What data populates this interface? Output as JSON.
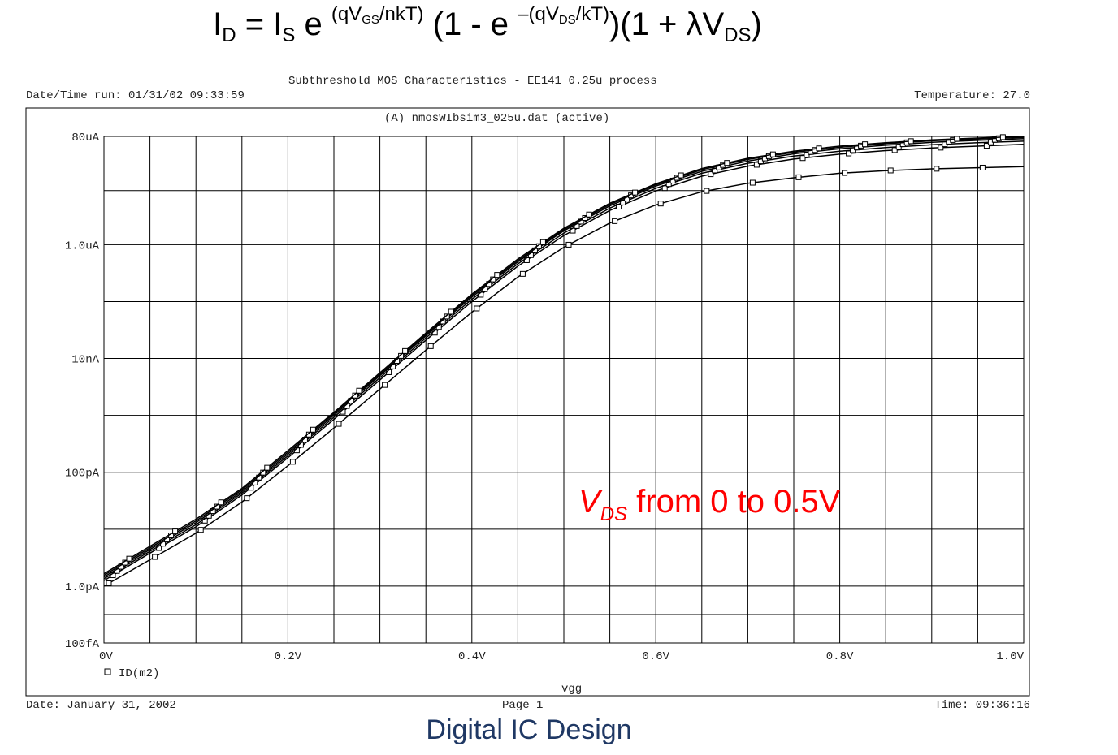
{
  "equation": {
    "lhs": "I",
    "lhs_sub": "D",
    "eq": " = I",
    "is_sub": "S",
    "e1": " e ",
    "exp1_a": "(qV",
    "exp1_sub": "GS",
    "exp1_b": "/nkT)",
    "mid": "  (1 - e ",
    "exp2_a": "–(qV",
    "exp2_sub": "DS",
    "exp2_b": "/kT)",
    "tail": ")(1 + λV",
    "tail_sub": "DS",
    "end": ")"
  },
  "header": {
    "title": "Subthreshold MOS Characteristics - EE141 0.25u process",
    "date_time_run": "Date/Time run: 01/31/02 09:33:59",
    "temperature": "Temperature: 27.0",
    "file": "(A) nmosWIbsim3_025u.dat (active)"
  },
  "footer_line": {
    "date": "Date: January 31, 2002",
    "page": "Page 1",
    "time": "Time: 09:36:16"
  },
  "legend_label": "ID(m2)",
  "annotation": {
    "v": "V",
    "sub": "DS",
    "rest": " from 0 to 0.5V"
  },
  "footer_title": "Digital IC Design",
  "colors": {
    "annotation": "#ff0000",
    "footer": "#1f3864",
    "grid": "#000000"
  },
  "chart_data": {
    "type": "line",
    "xlabel": "vgg",
    "ylabel": "",
    "x_scale": "linear",
    "y_scale": "log",
    "xlim": [
      0,
      1.0
    ],
    "ylim": [
      1e-13,
      8e-05
    ],
    "grid": true,
    "legend": "bottom-left",
    "x_ticks": [
      {
        "v": 0,
        "label": "0V"
      },
      {
        "v": 0.2,
        "label": "0.2V"
      },
      {
        "v": 0.4,
        "label": "0.4V"
      },
      {
        "v": 0.6,
        "label": "0.6V"
      },
      {
        "v": 0.8,
        "label": "0.8V"
      },
      {
        "v": 1.0,
        "label": "1.0V"
      }
    ],
    "y_ticks": [
      {
        "v": 8e-05,
        "label": "80uA"
      },
      {
        "v": 1e-06,
        "label": "1.0uA"
      },
      {
        "v": 1e-08,
        "label": "10nA"
      },
      {
        "v": 1e-10,
        "label": "100pA"
      },
      {
        "v": 1e-12,
        "label": "1.0pA"
      },
      {
        "v": 1e-13,
        "label": "100fA"
      }
    ],
    "series": [
      {
        "x": [
          0,
          0.05,
          0.1,
          0.15,
          0.2,
          0.25,
          0.3,
          0.35,
          0.4,
          0.45,
          0.5,
          0.55,
          0.6,
          0.65,
          0.7,
          0.75,
          0.8,
          0.85,
          0.9,
          0.95,
          1.0
        ],
        "y": [
          1e-12,
          2.9e-12,
          8.5e-12,
          3e-11,
          1.3e-10,
          6e-10,
          2.9e-09,
          1.4e-08,
          6.5e-08,
          2.7e-07,
          9e-07,
          2.4e-06,
          5e-06,
          8.5e-06,
          1.2e-05,
          1.5e-05,
          1.8e-05,
          2e-05,
          2.15e-05,
          2.25e-05,
          2.35e-05
        ]
      },
      {
        "x": [
          0,
          0.05,
          0.1,
          0.15,
          0.2,
          0.25,
          0.3,
          0.35,
          0.4,
          0.45,
          0.5,
          0.55,
          0.6,
          0.65,
          0.7,
          0.75,
          0.8,
          0.85,
          0.9,
          0.95,
          1.0
        ],
        "y": [
          1.25e-12,
          3.8e-12,
          1.1e-11,
          4e-11,
          1.8e-10,
          8.5e-10,
          4.2e-09,
          2.1e-08,
          1e-07,
          4.2e-07,
          1.45e-06,
          4e-06,
          8.8e-06,
          1.6e-05,
          2.4e-05,
          3.2e-05,
          3.9e-05,
          4.5e-05,
          5e-05,
          5.4e-05,
          5.8e-05
        ]
      },
      {
        "x": [
          0,
          0.05,
          0.1,
          0.15,
          0.2,
          0.25,
          0.3,
          0.35,
          0.4,
          0.45,
          0.5,
          0.55,
          0.6,
          0.65,
          0.7,
          0.75,
          0.8,
          0.85,
          0.9,
          0.95,
          1.0
        ],
        "y": [
          1.35e-12,
          4.1e-12,
          1.2e-11,
          4.3e-11,
          1.95e-10,
          9.3e-10,
          4.6e-09,
          2.3e-08,
          1.1e-07,
          4.6e-07,
          1.6e-06,
          4.4e-06,
          9.8e-06,
          1.8e-05,
          2.7e-05,
          3.6e-05,
          4.4e-05,
          5.1e-05,
          5.7e-05,
          6.2e-05,
          6.6e-05
        ]
      },
      {
        "x": [
          0,
          0.05,
          0.1,
          0.15,
          0.2,
          0.25,
          0.3,
          0.35,
          0.4,
          0.45,
          0.5,
          0.55,
          0.6,
          0.65,
          0.7,
          0.75,
          0.8,
          0.85,
          0.9,
          0.95,
          1.0
        ],
        "y": [
          1.45e-12,
          4.4e-12,
          1.3e-11,
          4.6e-11,
          2.1e-10,
          1e-09,
          5e-09,
          2.5e-08,
          1.2e-07,
          5e-07,
          1.75e-06,
          4.8e-06,
          1.07e-05,
          1.95e-05,
          2.95e-05,
          3.95e-05,
          4.85e-05,
          5.6e-05,
          6.3e-05,
          6.8e-05,
          7.3e-05
        ]
      },
      {
        "x": [
          0,
          0.05,
          0.1,
          0.15,
          0.2,
          0.25,
          0.3,
          0.35,
          0.4,
          0.45,
          0.5,
          0.55,
          0.6,
          0.65,
          0.7,
          0.75,
          0.8,
          0.85,
          0.9,
          0.95,
          1.0
        ],
        "y": [
          1.55e-12,
          4.7e-12,
          1.4e-11,
          4.9e-11,
          2.25e-10,
          1.07e-09,
          5.3e-09,
          2.65e-08,
          1.28e-07,
          5.3e-07,
          1.85e-06,
          5.1e-06,
          1.13e-05,
          2.08e-05,
          3.15e-05,
          4.2e-05,
          5.15e-05,
          5.95e-05,
          6.7e-05,
          7.2e-05,
          7.7e-05
        ]
      },
      {
        "x": [
          0,
          0.05,
          0.1,
          0.15,
          0.2,
          0.25,
          0.3,
          0.35,
          0.4,
          0.45,
          0.5,
          0.55,
          0.6,
          0.65,
          0.7,
          0.75,
          0.8,
          0.85,
          0.9,
          0.95,
          1.0
        ],
        "y": [
          1.65e-12,
          5e-12,
          1.5e-11,
          5.2e-11,
          2.4e-10,
          1.13e-09,
          5.6e-09,
          2.8e-08,
          1.35e-07,
          5.6e-07,
          1.95e-06,
          5.35e-06,
          1.18e-05,
          2.18e-05,
          3.3e-05,
          4.4e-05,
          5.4e-05,
          6.2e-05,
          6.95e-05,
          7.5e-05,
          8e-05
        ]
      }
    ]
  }
}
